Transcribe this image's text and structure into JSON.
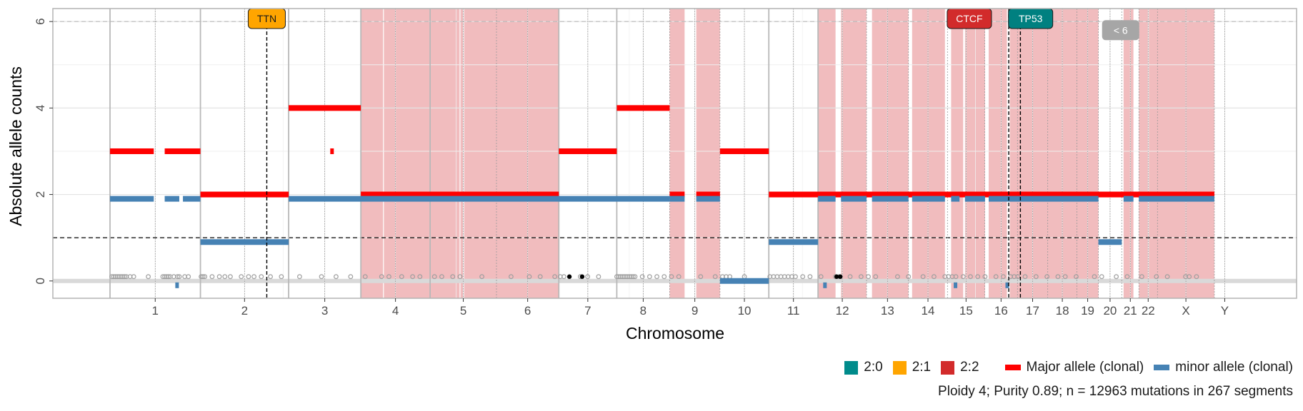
{
  "chart_data": {
    "type": "scatter",
    "xlabel": "Chromosome",
    "ylabel": "Absolute allele counts",
    "ylim": [
      -0.4,
      6.3
    ],
    "yticks": [
      0,
      2,
      4,
      6
    ],
    "ploidy_line": 1,
    "ref_line": 6,
    "chromosomes": [
      {
        "name": "1",
        "start": 0,
        "end": 248
      },
      {
        "name": "2",
        "start": 248,
        "end": 490
      },
      {
        "name": "3",
        "start": 490,
        "end": 688
      },
      {
        "name": "4",
        "start": 688,
        "end": 878
      },
      {
        "name": "5",
        "start": 878,
        "end": 1060
      },
      {
        "name": "6",
        "start": 1060,
        "end": 1231
      },
      {
        "name": "7",
        "start": 1231,
        "end": 1390
      },
      {
        "name": "8",
        "start": 1390,
        "end": 1535
      },
      {
        "name": "9",
        "start": 1535,
        "end": 1673
      },
      {
        "name": "10",
        "start": 1673,
        "end": 1807
      },
      {
        "name": "11",
        "start": 1807,
        "end": 1942
      },
      {
        "name": "12",
        "start": 1942,
        "end": 2075
      },
      {
        "name": "13",
        "start": 2075,
        "end": 2190
      },
      {
        "name": "14",
        "start": 2190,
        "end": 2297
      },
      {
        "name": "15",
        "start": 2297,
        "end": 2399
      },
      {
        "name": "16",
        "start": 2399,
        "end": 2489
      },
      {
        "name": "17",
        "start": 2489,
        "end": 2572
      },
      {
        "name": "18",
        "start": 2572,
        "end": 2652
      },
      {
        "name": "19",
        "start": 2652,
        "end": 2711
      },
      {
        "name": "20",
        "start": 2711,
        "end": 2775
      },
      {
        "name": "21",
        "start": 2775,
        "end": 2822
      },
      {
        "name": "22",
        "start": 2822,
        "end": 2873
      },
      {
        "name": "X",
        "start": 2873,
        "end": 3029
      },
      {
        "name": "Y",
        "start": 3029,
        "end": 3086
      }
    ],
    "highlight_regions": [
      [
        688,
        1231
      ],
      [
        1535,
        1576
      ],
      [
        1608,
        1673
      ],
      [
        1942,
        1990
      ],
      [
        2005,
        2075
      ],
      [
        2090,
        2190
      ],
      [
        2200,
        2290
      ],
      [
        2307,
        2340
      ],
      [
        2345,
        2400
      ],
      [
        2410,
        2460
      ],
      [
        2468,
        2711
      ],
      [
        2780,
        2807
      ],
      [
        2822,
        3029
      ]
    ],
    "white_lines": [
      750,
      960,
      970
    ],
    "series": [
      {
        "name": "Major allele (clonal)",
        "color": "#ff0000",
        "segments": [
          [
            0,
            120,
            3
          ],
          [
            150,
            248,
            3
          ],
          [
            248,
            490,
            2
          ],
          [
            490,
            688,
            4
          ],
          [
            688,
            1231,
            2
          ],
          [
            1231,
            1390,
            3
          ],
          [
            1390,
            1535,
            4
          ],
          [
            1535,
            1576,
            2
          ],
          [
            1608,
            1673,
            2
          ],
          [
            1673,
            1807,
            3
          ],
          [
            1807,
            3029,
            2
          ]
        ],
        "small": [
          [
            608,
            3
          ]
        ]
      },
      {
        "name": "minor allele (clonal)",
        "color": "#4682b4",
        "segments": [
          [
            0,
            120,
            1.9
          ],
          [
            150,
            190,
            1.9
          ],
          [
            200,
            248,
            1.9
          ],
          [
            248,
            490,
            0.9
          ],
          [
            490,
            1535,
            1.9
          ],
          [
            1535,
            1576,
            1.9
          ],
          [
            1608,
            1673,
            1.9
          ],
          [
            1673,
            1807,
            0
          ],
          [
            1807,
            1942,
            0.9
          ],
          [
            1942,
            1990,
            1.9
          ],
          [
            2005,
            2075,
            1.9
          ],
          [
            2090,
            2190,
            1.9
          ],
          [
            2200,
            2290,
            1.9
          ],
          [
            2307,
            2330,
            1.9
          ],
          [
            2345,
            2400,
            1.9
          ],
          [
            2410,
            2711,
            1.9
          ],
          [
            2711,
            2775,
            0.9
          ],
          [
            2780,
            2807,
            1.9
          ],
          [
            2822,
            3029,
            1.9
          ]
        ],
        "small": [
          [
            183,
            -0.1
          ],
          [
            1960,
            -0.1
          ],
          [
            2318,
            -0.1
          ],
          [
            2460,
            -0.1
          ]
        ]
      }
    ],
    "mutation_points": [
      5,
      10,
      15,
      20,
      25,
      30,
      35,
      40,
      45,
      55,
      65,
      105,
      145,
      150,
      155,
      160,
      165,
      175,
      185,
      190,
      205,
      215,
      250,
      255,
      260,
      280,
      300,
      315,
      330,
      360,
      380,
      395,
      415,
      440,
      470,
      520,
      580,
      620,
      660,
      700,
      745,
      765,
      800,
      830,
      850,
      890,
      910,
      940,
      960,
      1020,
      1100,
      1150,
      1180,
      1220,
      1235,
      1245,
      1290,
      1310,
      1340,
      1390,
      1395,
      1400,
      1405,
      1410,
      1415,
      1420,
      1425,
      1430,
      1435,
      1440,
      1460,
      1480,
      1500,
      1520,
      1540,
      1560,
      1620,
      1660,
      1680,
      1690,
      1700,
      1740,
      1810,
      1820,
      1830,
      1840,
      1850,
      1860,
      1870,
      1880,
      1900,
      1920,
      1950,
      1990,
      2000,
      2030,
      2060,
      2080,
      2100,
      2160,
      2190,
      2230,
      2260,
      2290,
      2300,
      2310,
      2320,
      2340,
      2360,
      2380,
      2400,
      2430,
      2450,
      2470,
      2480,
      2490,
      2510,
      2540,
      2570,
      2600,
      2620,
      2650,
      2700,
      2720,
      2760,
      2790,
      2830,
      2870,
      2900,
      2950,
      2960,
      2980
    ],
    "driver_points": [
      1260,
      1295,
      1993,
      2003
    ],
    "genes": [
      {
        "name": "TTN",
        "x": 430,
        "fill": "#ffa500",
        "text": "#1a1a1a",
        "line": 430
      },
      {
        "name": "CTCF",
        "x": 2357,
        "fill": "#d22b2b",
        "text": "#ffffff",
        "line": 2465
      },
      {
        "name": "TP53",
        "x": 2525,
        "fill": "#008080",
        "text": "#ffffff",
        "line": 2497
      },
      {
        "name": "< 6",
        "x": 2772,
        "fill": "#a6a6a6",
        "text": "#ffffff",
        "line": null,
        "y": 5.8
      }
    ],
    "legend": {
      "fill": [
        {
          "label": "2:0",
          "color": "#008b8b"
        },
        {
          "label": "2:1",
          "color": "#ffa500"
        },
        {
          "label": "2:2",
          "color": "#d22b2b"
        }
      ],
      "lines": [
        {
          "label": "Major allele (clonal)",
          "color": "#ff0000"
        },
        {
          "label": "minor allele (clonal)",
          "color": "#4682b4"
        }
      ]
    },
    "caption": "Ploidy 4; Purity  0.89; n = 12963 mutations in 267 segments"
  }
}
